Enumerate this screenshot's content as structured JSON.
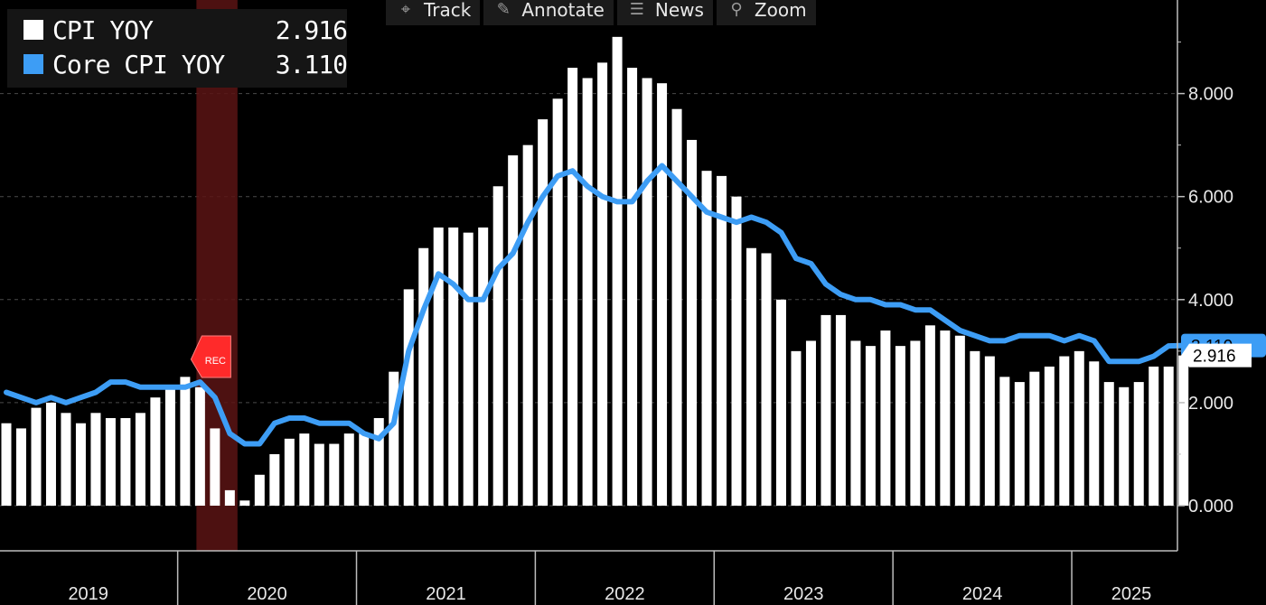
{
  "toolbar": {
    "items": [
      {
        "label": "Track",
        "icon": "crosshair-icon"
      },
      {
        "label": "Annotate",
        "icon": "pencil-icon"
      },
      {
        "label": "News",
        "icon": "news-icon"
      },
      {
        "label": "Zoom",
        "icon": "magnifier-icon"
      }
    ]
  },
  "legend": [
    {
      "name": "CPI YOY",
      "value": "2.916",
      "color": "#ffffff"
    },
    {
      "name": "Core CPI YOY",
      "value": "3.110",
      "color": "#3d9df5"
    }
  ],
  "last_value_tags": {
    "cpi": "2.916",
    "core": "3.110"
  },
  "recession": {
    "label": "REC",
    "start_month": "2020-02",
    "end_month": "2020-04"
  },
  "chart_data": {
    "type": "bar",
    "start_month": "2019-01",
    "x_ticks": [
      "2019",
      "2020",
      "2021",
      "2022",
      "2023",
      "2024",
      "2025"
    ],
    "y_ticks": [
      "0.000",
      "2.000",
      "4.000",
      "6.000",
      "8.000"
    ],
    "ylim": [
      -0.9,
      9.6
    ],
    "grid": true,
    "legend_placement": "top-left",
    "series": [
      {
        "name": "CPI YOY",
        "type": "bar",
        "color": "#ffffff",
        "values": [
          1.6,
          1.5,
          1.9,
          2.0,
          1.8,
          1.6,
          1.8,
          1.7,
          1.7,
          1.8,
          2.1,
          2.3,
          2.5,
          2.3,
          1.5,
          0.3,
          0.1,
          0.6,
          1.0,
          1.3,
          1.4,
          1.2,
          1.2,
          1.4,
          1.4,
          1.7,
          2.6,
          4.2,
          5.0,
          5.4,
          5.4,
          5.3,
          5.4,
          6.2,
          6.8,
          7.0,
          7.5,
          7.9,
          8.5,
          8.3,
          8.6,
          9.1,
          8.5,
          8.3,
          8.2,
          7.7,
          7.1,
          6.5,
          6.4,
          6.0,
          5.0,
          4.9,
          4.0,
          3.0,
          3.2,
          3.7,
          3.7,
          3.2,
          3.1,
          3.4,
          3.1,
          3.2,
          3.5,
          3.4,
          3.3,
          3.0,
          2.9,
          2.5,
          2.4,
          2.6,
          2.7,
          2.9,
          3.0,
          2.8,
          2.4,
          2.3,
          2.4,
          2.7,
          2.7,
          2.916
        ]
      },
      {
        "name": "Core CPI YOY",
        "type": "line",
        "color": "#3d9df5",
        "values": [
          2.2,
          2.1,
          2.0,
          2.1,
          2.0,
          2.1,
          2.2,
          2.4,
          2.4,
          2.3,
          2.3,
          2.3,
          2.3,
          2.4,
          2.1,
          1.4,
          1.2,
          1.2,
          1.6,
          1.7,
          1.7,
          1.6,
          1.6,
          1.6,
          1.4,
          1.3,
          1.6,
          3.0,
          3.8,
          4.5,
          4.3,
          4.0,
          4.0,
          4.6,
          4.9,
          5.5,
          6.0,
          6.4,
          6.5,
          6.2,
          6.0,
          5.9,
          5.9,
          6.3,
          6.6,
          6.3,
          6.0,
          5.7,
          5.6,
          5.5,
          5.6,
          5.5,
          5.3,
          4.8,
          4.7,
          4.3,
          4.1,
          4.0,
          4.0,
          3.9,
          3.9,
          3.8,
          3.8,
          3.6,
          3.4,
          3.3,
          3.2,
          3.2,
          3.3,
          3.3,
          3.3,
          3.2,
          3.3,
          3.2,
          2.8,
          2.8,
          2.8,
          2.9,
          3.1,
          3.11
        ]
      }
    ]
  }
}
